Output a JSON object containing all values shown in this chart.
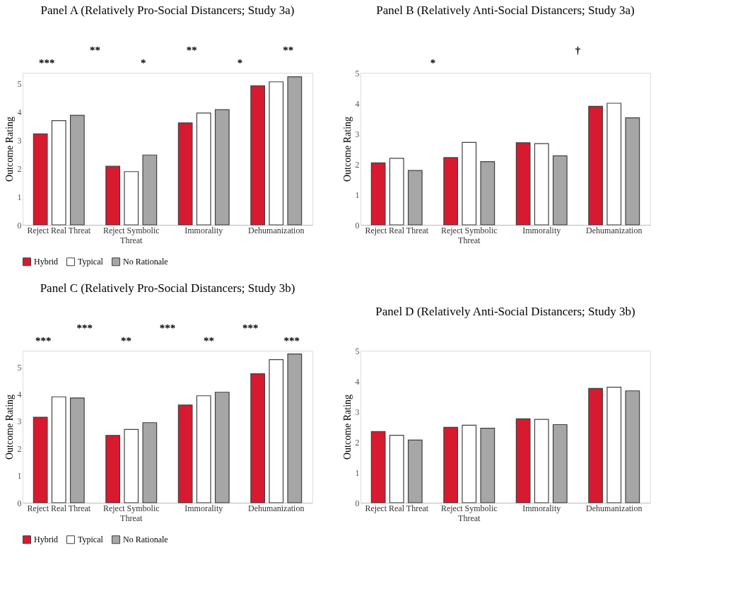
{
  "chart_data": [
    {
      "type": "bar",
      "title": "Panel A (Relatively Pro-Social Distancers; Study 3a)",
      "ylabel": "Outcome Rating",
      "categories": [
        "Reject Real Threat",
        "Reject Symbolic Threat",
        "Immorality",
        "Dehumanization"
      ],
      "ylim": [
        0,
        5.4
      ],
      "yticks": [
        0,
        1,
        2,
        3,
        4,
        5
      ],
      "grid": false,
      "legend": "bottom",
      "series": [
        {
          "name": "Hybrid",
          "color": "#d71a2f",
          "values": [
            3.23,
            2.08,
            3.62,
            4.94
          ]
        },
        {
          "name": "Typical",
          "color": "#ffffff",
          "values": [
            3.7,
            1.89,
            3.97,
            5.08
          ]
        },
        {
          "name": "No Rationale",
          "color": "#a6a6a6",
          "values": [
            3.89,
            2.48,
            4.09,
            5.26
          ]
        }
      ],
      "annotations": [
        "***",
        "**",
        "*",
        "**",
        "*",
        "**"
      ]
    },
    {
      "type": "bar",
      "title": "Panel B (Relatively Anti-Social Distancers; Study 3a)",
      "ylabel": "Outcome Rating",
      "categories": [
        "Reject Real Threat",
        "Reject Symbolic Threat",
        "Immorality",
        "Dehumanization"
      ],
      "ylim": [
        0,
        5
      ],
      "yticks": [
        0,
        1,
        2,
        3,
        4,
        5
      ],
      "grid": false,
      "legend": "bottom",
      "series": [
        {
          "name": "Hybrid",
          "color": "#d71a2f",
          "values": [
            2.04,
            2.21,
            2.7,
            3.9
          ]
        },
        {
          "name": "Typical",
          "color": "#ffffff",
          "values": [
            2.19,
            2.71,
            2.67,
            4.0
          ]
        },
        {
          "name": "No Rationale",
          "color": "#a6a6a6",
          "values": [
            1.79,
            2.08,
            2.27,
            3.52
          ]
        }
      ],
      "annotations": [
        "*",
        "†"
      ]
    },
    {
      "type": "bar",
      "title": "Panel C (Relatively Pro-Social Distancers; Study 3b)",
      "ylabel": "Outcome Rating",
      "categories": [
        "Reject Real Threat",
        "Reject Symbolic Threat",
        "Immorality",
        "Dehumanization"
      ],
      "ylim": [
        0,
        5.6
      ],
      "yticks": [
        0,
        1,
        2,
        3,
        4,
        5
      ],
      "grid": false,
      "legend": "bottom",
      "series": [
        {
          "name": "Hybrid",
          "color": "#d71a2f",
          "values": [
            3.15,
            2.48,
            3.6,
            4.75
          ]
        },
        {
          "name": "Typical",
          "color": "#ffffff",
          "values": [
            3.9,
            2.7,
            3.94,
            5.27
          ]
        },
        {
          "name": "No Rationale",
          "color": "#a6a6a6",
          "values": [
            3.86,
            2.95,
            4.07,
            5.48
          ]
        }
      ],
      "annotations": [
        "***",
        "***",
        "**",
        "***",
        "**",
        "***",
        "***"
      ]
    },
    {
      "type": "bar",
      "title": "Panel D (Relatively Anti-Social Distancers; Study 3b)",
      "ylabel": "Outcome Rating",
      "categories": [
        "Reject Real Threat",
        "Reject Symbolic Threat",
        "Immorality",
        "Dehumanization"
      ],
      "ylim": [
        0,
        5
      ],
      "yticks": [
        0,
        1,
        2,
        3,
        4,
        5
      ],
      "grid": false,
      "legend": "bottom",
      "series": [
        {
          "name": "Hybrid",
          "color": "#d71a2f",
          "values": [
            2.34,
            2.48,
            2.76,
            3.76
          ]
        },
        {
          "name": "Typical",
          "color": "#ffffff",
          "values": [
            2.22,
            2.55,
            2.74,
            3.8
          ]
        },
        {
          "name": "No Rationale",
          "color": "#a6a6a6",
          "values": [
            2.06,
            2.45,
            2.57,
            3.68
          ]
        }
      ]
    }
  ]
}
